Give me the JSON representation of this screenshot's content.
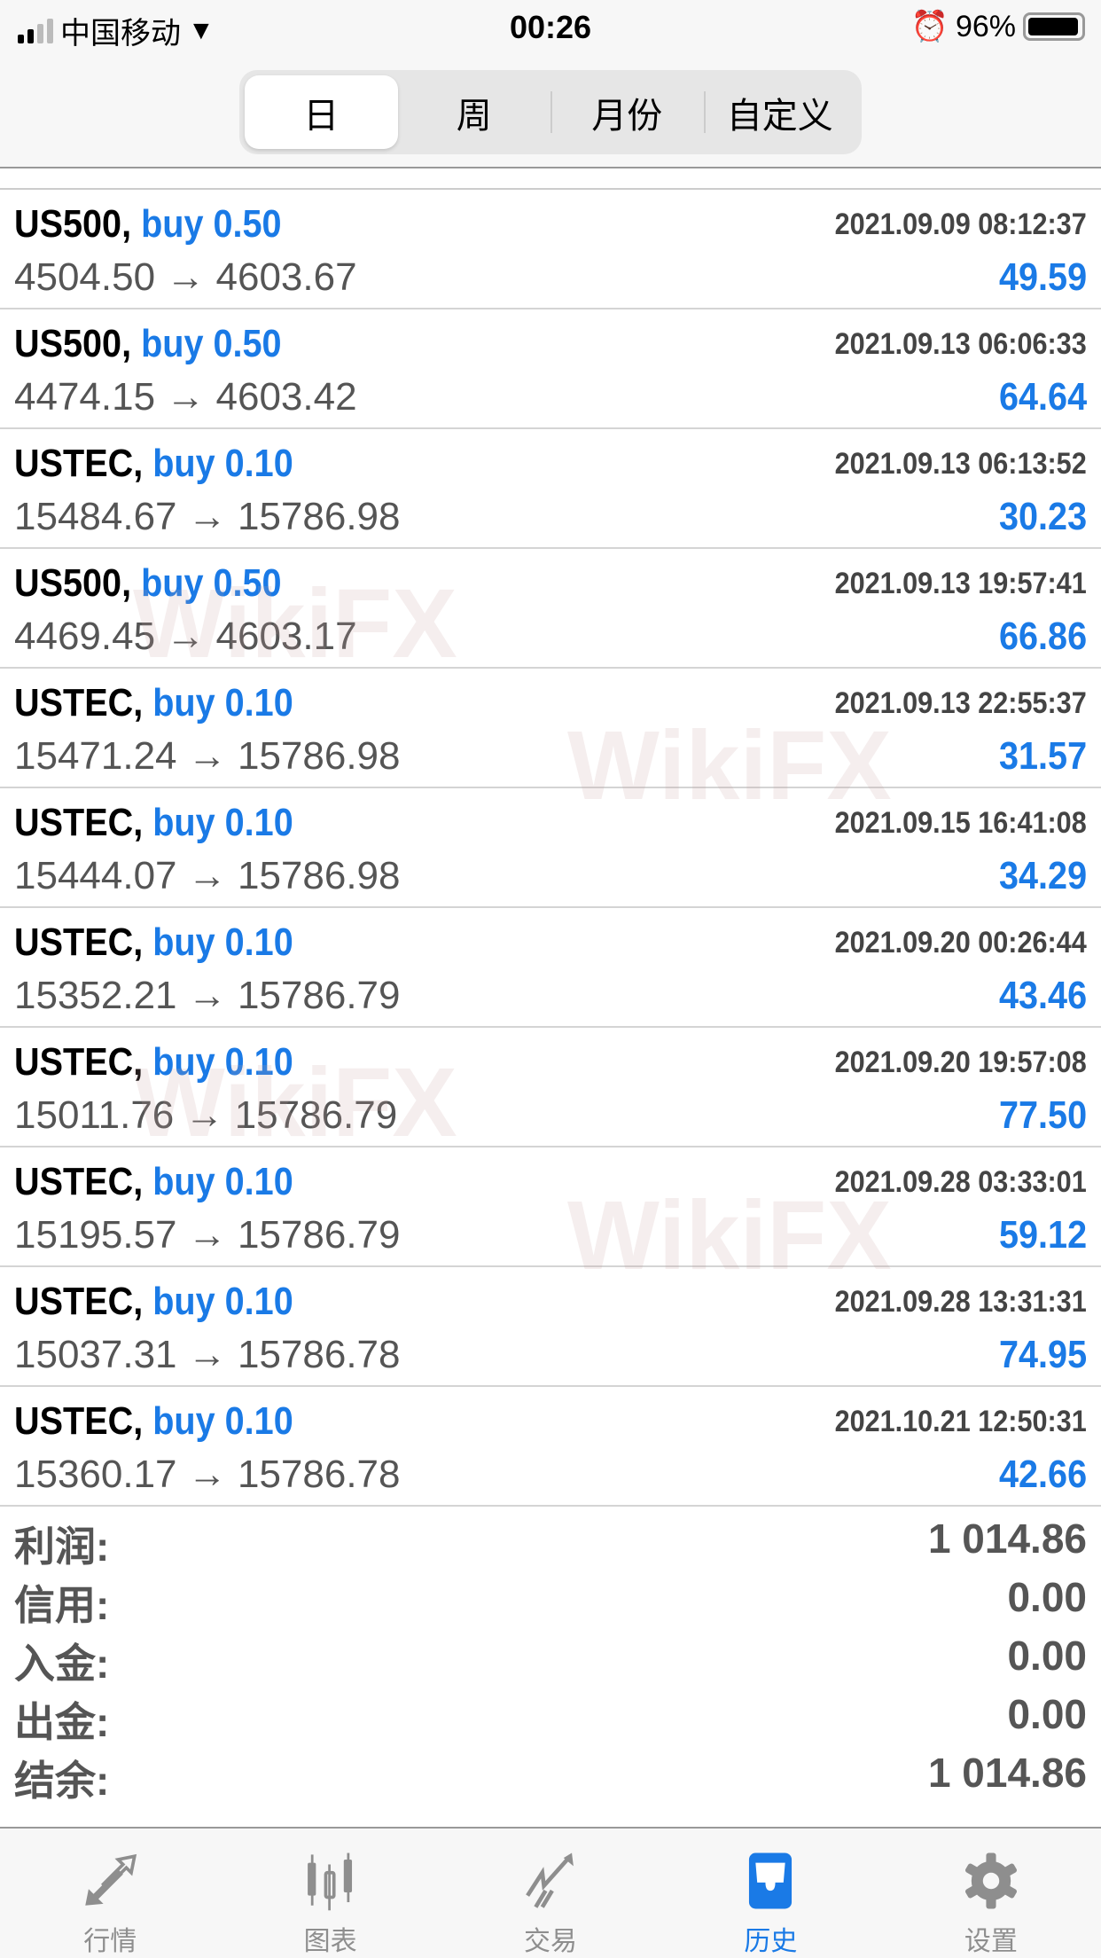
{
  "status_bar": {
    "carrier": "中国移动",
    "time": "00:26",
    "battery": "96%",
    "battery_level": 0.96
  },
  "segments": [
    {
      "label": "日",
      "active": true
    },
    {
      "label": "周"
    },
    {
      "label": "月份"
    },
    {
      "label": "自定义"
    }
  ],
  "trades": [
    {
      "symbol": "US500,",
      "side": "buy 0.50",
      "date": "2021.09.09 08:12:37",
      "prices": "4504.50 → 4603.67",
      "profit": "49.59"
    },
    {
      "symbol": "US500,",
      "side": "buy 0.50",
      "date": "2021.09.13 06:06:33",
      "prices": "4474.15 → 4603.42",
      "profit": "64.64"
    },
    {
      "symbol": "USTEC,",
      "side": "buy 0.10",
      "date": "2021.09.13 06:13:52",
      "prices": "15484.67 → 15786.98",
      "profit": "30.23"
    },
    {
      "symbol": "US500,",
      "side": "buy 0.50",
      "date": "2021.09.13 19:57:41",
      "prices": "4469.45 → 4603.17",
      "profit": "66.86"
    },
    {
      "symbol": "USTEC,",
      "side": "buy 0.10",
      "date": "2021.09.13 22:55:37",
      "prices": "15471.24 → 15786.98",
      "profit": "31.57"
    },
    {
      "symbol": "USTEC,",
      "side": "buy 0.10",
      "date": "2021.09.15 16:41:08",
      "prices": "15444.07 → 15786.98",
      "profit": "34.29"
    },
    {
      "symbol": "USTEC,",
      "side": "buy 0.10",
      "date": "2021.09.20 00:26:44",
      "prices": "15352.21 → 15786.79",
      "profit": "43.46"
    },
    {
      "symbol": "USTEC,",
      "side": "buy 0.10",
      "date": "2021.09.20 19:57:08",
      "prices": "15011.76 → 15786.79",
      "profit": "77.50"
    },
    {
      "symbol": "USTEC,",
      "side": "buy 0.10",
      "date": "2021.09.28 03:33:01",
      "prices": "15195.57 → 15786.79",
      "profit": "59.12"
    },
    {
      "symbol": "USTEC,",
      "side": "buy 0.10",
      "date": "2021.09.28 13:31:31",
      "prices": "15037.31 → 15786.78",
      "profit": "74.95"
    },
    {
      "symbol": "USTEC,",
      "side": "buy 0.10",
      "date": "2021.10.21 12:50:31",
      "prices": "15360.17 → 15786.78",
      "profit": "42.66"
    }
  ],
  "summary": [
    {
      "label": "利润:",
      "value": "1 014.86"
    },
    {
      "label": "信用:",
      "value": "0.00"
    },
    {
      "label": "入金:",
      "value": "0.00"
    },
    {
      "label": "出金:",
      "value": "0.00"
    },
    {
      "label": "结余:",
      "value": "1 014.86"
    }
  ],
  "tabs": [
    {
      "label": "行情",
      "icon": "quotes-arrows-icon"
    },
    {
      "label": "图表",
      "icon": "candlestick-chart-icon"
    },
    {
      "label": "交易",
      "icon": "trade-trend-icon"
    },
    {
      "label": "历史",
      "icon": "history-inbox-icon",
      "active": true
    },
    {
      "label": "设置",
      "icon": "gear-icon"
    }
  ],
  "watermark": "WikiFX",
  "colors": {
    "accent": "#1a7ae6",
    "inactive": "#8e8e8e"
  }
}
